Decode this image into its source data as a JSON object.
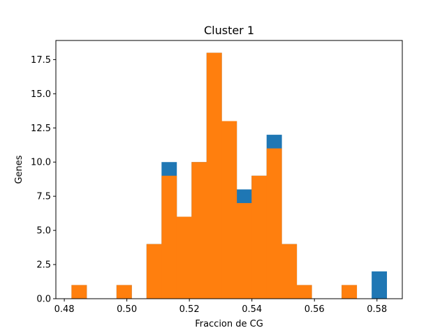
{
  "chart_data": {
    "type": "bar",
    "title": "Cluster 1",
    "xlabel": "Fraccion de CG",
    "ylabel": "Genes",
    "xlim": [
      0.4773,
      0.5881
    ],
    "ylim": [
      0,
      18.9
    ],
    "xticks": [
      "0.48",
      "0.50",
      "0.52",
      "0.54",
      "0.56",
      "0.58"
    ],
    "xtick_values": [
      0.48,
      0.5,
      0.52,
      0.54,
      0.56,
      0.58
    ],
    "yticks": [
      "0.0",
      "2.5",
      "5.0",
      "7.5",
      "10.0",
      "12.5",
      "15.0",
      "17.5"
    ],
    "ytick_values": [
      0,
      2.5,
      5,
      7.5,
      10,
      12.5,
      15,
      17.5
    ],
    "grid": false,
    "bin_edges": [
      0.4823,
      0.4871,
      0.4919,
      0.4967,
      0.5015,
      0.5063,
      0.5111,
      0.5159,
      0.5207,
      0.5255,
      0.5303,
      0.5351,
      0.5399,
      0.5447,
      0.5495,
      0.5543,
      0.5591,
      0.5639,
      0.5687,
      0.5735,
      0.5783,
      0.5831
    ],
    "series": [
      {
        "color": "#1f77b4",
        "values": [
          1,
          0,
          0,
          1,
          0,
          4,
          10,
          6,
          10,
          18,
          13,
          8,
          9,
          12,
          4,
          1,
          0,
          0,
          1,
          0,
          2
        ]
      },
      {
        "color": "#ff7f0e",
        "values": [
          1,
          0,
          0,
          1,
          0,
          4,
          9,
          6,
          10,
          18,
          13,
          7,
          9,
          11,
          4,
          1,
          0,
          0,
          1,
          0,
          0
        ]
      }
    ]
  }
}
